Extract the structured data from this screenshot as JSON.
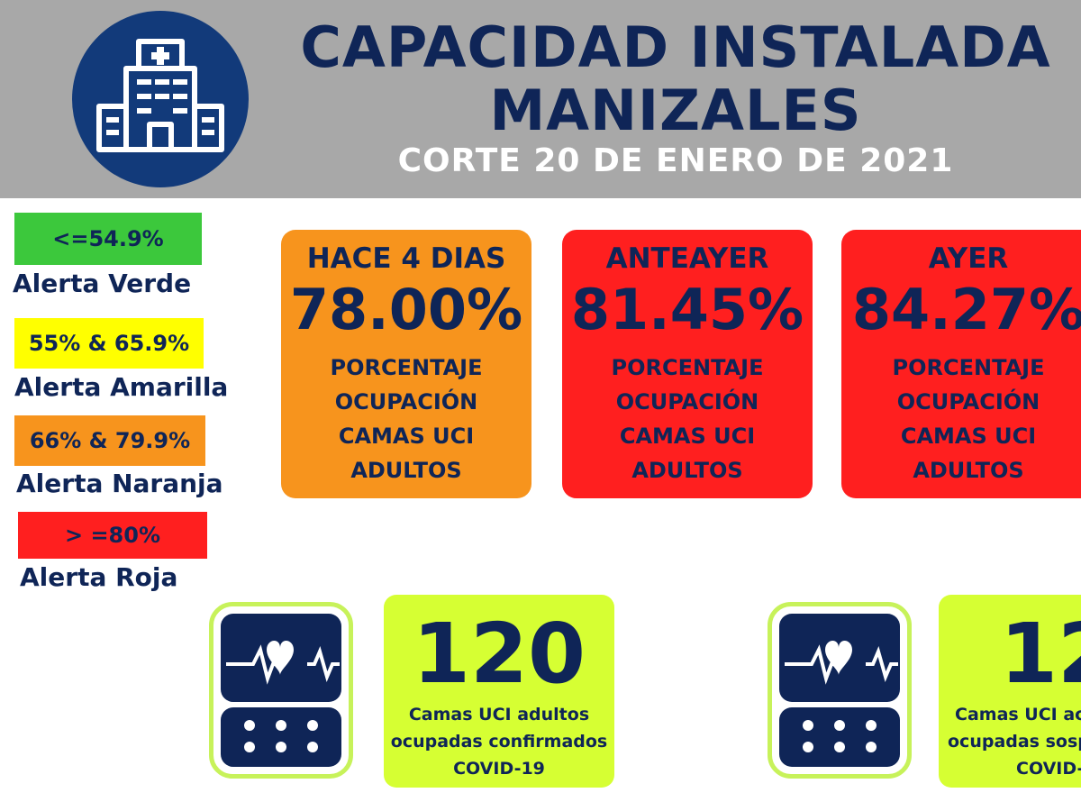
{
  "header": {
    "title_line1": "CAPACIDAD INSTALADA",
    "title_line2": "MANIZALES",
    "subtitle": "CORTE 20 DE ENERO DE 2021",
    "logo_icon": "hospital-icon",
    "colors": {
      "band": "#a8a8a8",
      "navy": "#0f2557",
      "logo_bg": "#123a7a"
    }
  },
  "legend": [
    {
      "range": "<=54.9%",
      "label": "Alerta Verde",
      "color": "#3cc83c"
    },
    {
      "range": "55% & 65.9%",
      "label": "Alerta Amarilla",
      "color": "#ffff00"
    },
    {
      "range": "66% & 79.9%",
      "label": "Alerta Naranja",
      "color": "#f7941d"
    },
    {
      "range": "> =80%",
      "label": "Alerta Roja",
      "color": "#ff1f1f"
    }
  ],
  "occupancy_cards": [
    {
      "when": "HACE 4 DIAS",
      "percent": "78.00%",
      "desc1": "PORCENTAJE",
      "desc2": "OCUPACIÓN",
      "desc3": "CAMAS UCI",
      "desc4": "ADULTOS",
      "color": "#f7941d"
    },
    {
      "when": "ANTEAYER",
      "percent": "81.45%",
      "desc1": "PORCENTAJE",
      "desc2": "OCUPACIÓN",
      "desc3": "CAMAS UCI",
      "desc4": "ADULTOS",
      "color": "#ff1f1f"
    },
    {
      "when": "AYER",
      "percent": "84.27%",
      "desc1": "PORCENTAJE",
      "desc2": "OCUPACIÓN",
      "desc3": "CAMAS UCI",
      "desc4": "ADULTOS",
      "color": "#ff1f1f"
    }
  ],
  "counts": [
    {
      "number": "120",
      "line1": "Camas UCI adultos",
      "line2": "ocupadas confirmados",
      "line3": "COVID-19",
      "icon": "heart-monitor-icon"
    },
    {
      "number": "12",
      "line1": "Camas UCI ac",
      "line2": "ocupadas sospe",
      "line3": "COVID-1",
      "icon": "heart-monitor-icon"
    }
  ],
  "count_card_color": "#d6ff33"
}
